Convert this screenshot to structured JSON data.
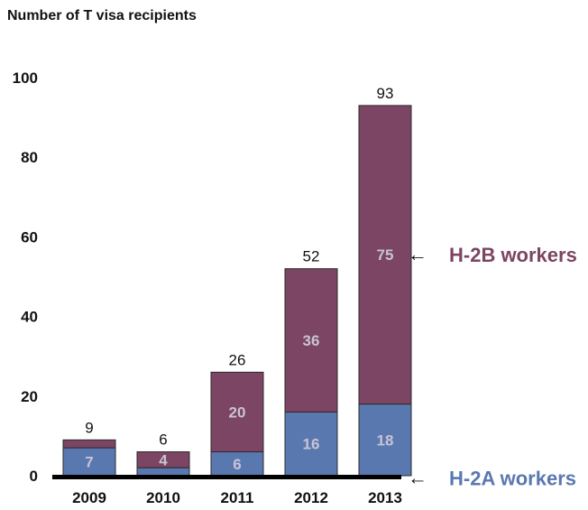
{
  "chart_data": {
    "type": "bar",
    "stacked": true,
    "ylabel": "Number of T visa recipients",
    "xlabel": "",
    "categories": [
      "2009",
      "2010",
      "2011",
      "2012",
      "2013"
    ],
    "ylim": [
      0,
      100
    ],
    "yticks": [
      0,
      20,
      40,
      60,
      80,
      100
    ],
    "grid": false,
    "series": [
      {
        "name": "H-2A workers",
        "color": "#5a78b0",
        "values": [
          7,
          2,
          6,
          16,
          18
        ],
        "labels": [
          "7",
          "",
          "6",
          "16",
          "18"
        ]
      },
      {
        "name": "H-2B workers",
        "color": "#7b4563",
        "values": [
          2,
          4,
          20,
          36,
          75
        ],
        "labels": [
          "",
          "4",
          "20",
          "36",
          "75"
        ]
      }
    ],
    "totals": [
      "9",
      "6",
      "26",
      "52",
      "93"
    ],
    "legend": {
      "placement": "right",
      "arrow": "←"
    }
  }
}
